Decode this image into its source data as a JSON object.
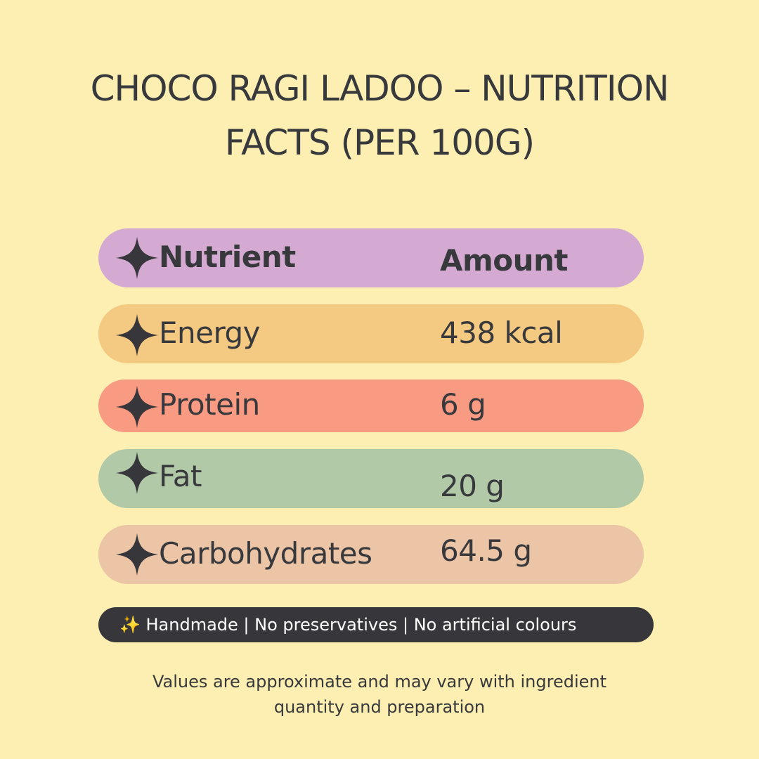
{
  "title": {
    "line1": "CHOCO RAGI LADOO – NUTRITION",
    "line2": "FACTS (PER 100G)"
  },
  "table": {
    "header": {
      "nutrient": "Nutrient",
      "amount": "Amount",
      "color": "#d5aad2"
    },
    "rows": [
      {
        "nutrient": "Energy",
        "amount": "438 kcal",
        "color": "#f4c981"
      },
      {
        "nutrient": "Protein",
        "amount": "6 g",
        "color": "#f99a83"
      },
      {
        "nutrient": "Fat",
        "amount": "20 g",
        "color": "#b2c9a8"
      },
      {
        "nutrient": "Carbohydrates",
        "amount": "64.5 g",
        "color": "#ecc4a6"
      }
    ],
    "bullet_icon": "four-point-star-icon"
  },
  "badge": {
    "text": "✨ Handmade | No preservatives | No artificial colours"
  },
  "footnote": {
    "line1": "Values are approximate and may vary with ingredient",
    "line2": "quantity and preparation"
  }
}
